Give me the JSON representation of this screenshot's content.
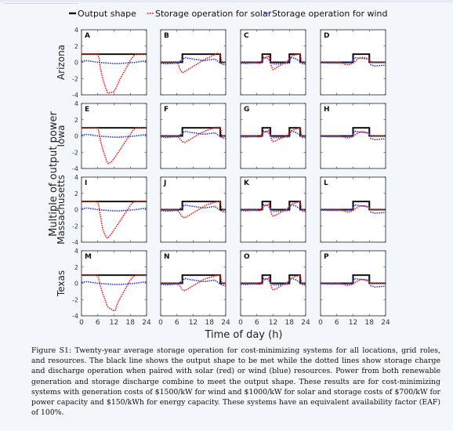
{
  "chart_data": {
    "type": "line",
    "layout": "small-multiples 4x4",
    "legend": {
      "placement": "top",
      "entries": [
        {
          "label": "Output shape",
          "color": "#111111",
          "style": "solid"
        },
        {
          "label": "Storage operation for solar",
          "color": "#e8221c",
          "style": "dotted"
        },
        {
          "label": "Storage operation for wind",
          "color": "#2b3bd6",
          "style": "dotted"
        }
      ]
    },
    "ylabel": "Multiple of output power",
    "xlabel": "Time of day (h)",
    "x_ticks": [
      "0",
      "6",
      "12",
      "18",
      "24"
    ],
    "y_ticks": [
      "4",
      "2",
      "0",
      "-2",
      "-4"
    ],
    "xlim": [
      0,
      24
    ],
    "ylim": [
      -4,
      4
    ],
    "rows": [
      "Arizona",
      "Iowa",
      "Massachusetts",
      "Texas"
    ],
    "panel_letters": [
      "A",
      "B",
      "C",
      "D",
      "E",
      "F",
      "G",
      "H",
      "I",
      "J",
      "K",
      "L",
      "M",
      "N",
      "O",
      "P"
    ],
    "columns": [
      {
        "output_shape": {
          "x": [
            0,
            24
          ],
          "y": [
            1,
            1
          ]
        },
        "wind": {
          "x": [
            0,
            1,
            2,
            3,
            4,
            5,
            6,
            8,
            10,
            12,
            14,
            16,
            18,
            20,
            22,
            23,
            24
          ],
          "y": [
            0.1,
            0.15,
            0.2,
            0.15,
            0.1,
            0.05,
            0,
            -0.05,
            -0.1,
            -0.15,
            -0.15,
            -0.1,
            -0.05,
            0,
            0.1,
            0.15,
            0.15
          ]
        }
      },
      {
        "output_shape": {
          "x": [
            0,
            8,
            8,
            22,
            22,
            24
          ],
          "y": [
            0,
            0,
            1,
            1,
            0,
            0
          ]
        },
        "wind": {
          "x": [
            0,
            2,
            4,
            6,
            8,
            9,
            10,
            12,
            14,
            16,
            18,
            20,
            22,
            23,
            24
          ],
          "y": [
            -0.1,
            -0.2,
            -0.15,
            -0.1,
            0.3,
            0.6,
            0.5,
            0.4,
            0.3,
            0.2,
            0.3,
            0.4,
            -0.1,
            -0.25,
            -0.3
          ]
        }
      },
      {
        "output_shape": {
          "x": [
            0,
            8,
            8,
            11,
            11,
            18,
            18,
            22,
            22,
            24
          ],
          "y": [
            0,
            0,
            1,
            1,
            0,
            0,
            1,
            1,
            0,
            0
          ]
        },
        "wind": {
          "x": [
            0,
            2,
            4,
            6,
            8,
            8.5,
            10,
            11,
            12,
            14,
            16,
            18,
            18.5,
            20,
            22,
            23,
            24
          ],
          "y": [
            -0.1,
            -0.15,
            -0.1,
            -0.1,
            -0.05,
            0.6,
            0.5,
            0.1,
            -0.2,
            -0.2,
            -0.15,
            -0.1,
            0.6,
            0.5,
            0.1,
            -0.2,
            -0.2
          ]
        }
      },
      {
        "output_shape": {
          "x": [
            0,
            12,
            12,
            18,
            18,
            24
          ],
          "y": [
            0,
            0,
            1,
            1,
            0,
            0
          ]
        },
        "wind": {
          "x": [
            0,
            3,
            6,
            9,
            11,
            12,
            12.5,
            14,
            16,
            18,
            18.5,
            20,
            22,
            24
          ],
          "y": [
            -0.05,
            -0.1,
            -0.1,
            -0.1,
            -0.05,
            0.2,
            0.6,
            0.5,
            0.45,
            0.4,
            -0.3,
            -0.45,
            -0.4,
            -0.35
          ]
        }
      }
    ],
    "solar": [
      [
        {
          "x": [
            0,
            5,
            6,
            6.5,
            7,
            8,
            9,
            9.5,
            10,
            11,
            12,
            13,
            14,
            15,
            16,
            17,
            18,
            19,
            20,
            24
          ],
          "y": [
            1,
            1,
            0.95,
            0.5,
            -0.8,
            -2.2,
            -3.2,
            -3.7,
            -3.8,
            -3.7,
            -3.6,
            -3.0,
            -2.2,
            -1.6,
            -1.0,
            -0.4,
            0.2,
            0.7,
            1,
            1
          ]
        },
        {
          "x": [
            0,
            6,
            6.5,
            7,
            8,
            9,
            10,
            11,
            12,
            13,
            14,
            15,
            16,
            17,
            18,
            19,
            20,
            21,
            22,
            22.5,
            23,
            24
          ],
          "y": [
            0,
            0,
            -0.2,
            -0.8,
            -1.3,
            -1.1,
            -0.9,
            -0.7,
            -0.5,
            -0.3,
            -0.1,
            0.1,
            0.3,
            0.5,
            0.6,
            0.8,
            0.95,
            1.1,
            1,
            0.1,
            0,
            0
          ]
        },
        {
          "x": [
            0,
            6,
            7,
            8,
            9,
            10,
            10.5,
            11,
            11.5,
            12,
            13,
            14,
            15,
            16,
            17,
            18,
            19,
            20,
            21,
            22,
            22.5,
            24
          ],
          "y": [
            0,
            0,
            -0.2,
            0.3,
            0.6,
            0.7,
            0.8,
            0,
            -0.6,
            -0.9,
            -0.7,
            -0.5,
            -0.3,
            -0.1,
            0,
            0.5,
            0.8,
            0.9,
            1,
            1,
            0,
            0
          ]
        },
        {
          "x": [
            0,
            7,
            8,
            9,
            10,
            11,
            12,
            13,
            14,
            15,
            16,
            17,
            18,
            18.5,
            19,
            20,
            24
          ],
          "y": [
            0,
            0,
            -0.1,
            -0.25,
            -0.3,
            -0.25,
            -0.1,
            0.2,
            0.5,
            0.6,
            0.6,
            0.5,
            0.3,
            0,
            -0.05,
            0,
            0
          ]
        }
      ],
      [
        {
          "x": [
            0,
            5,
            6,
            6.5,
            7,
            8,
            9,
            9.5,
            10,
            11,
            12,
            13,
            14,
            15,
            16,
            17,
            18,
            19,
            20,
            24
          ],
          "y": [
            1,
            1,
            0.95,
            0.4,
            -0.6,
            -1.8,
            -2.8,
            -3.3,
            -3.4,
            -3.2,
            -2.8,
            -2.3,
            -1.8,
            -1.3,
            -0.8,
            -0.3,
            0.2,
            0.7,
            1,
            1
          ]
        },
        {
          "x": [
            0,
            6,
            7,
            8,
            9,
            10,
            11,
            12,
            13,
            14,
            15,
            16,
            17,
            18,
            19,
            20,
            21,
            22,
            22.5,
            23,
            24
          ],
          "y": [
            0,
            0,
            -0.3,
            -0.7,
            -0.8,
            -0.6,
            -0.4,
            -0.2,
            0,
            0.2,
            0.4,
            0.5,
            0.7,
            0.8,
            0.9,
            1.0,
            1.1,
            1,
            0.1,
            0,
            0
          ]
        },
        {
          "x": [
            0,
            6,
            7,
            8,
            9,
            10,
            10.5,
            11,
            11.5,
            12,
            13,
            14,
            15,
            16,
            17,
            18,
            19,
            20,
            21,
            22,
            22.5,
            24
          ],
          "y": [
            0,
            0,
            -0.2,
            0.3,
            0.5,
            0.6,
            0.7,
            0,
            -0.5,
            -0.7,
            -0.6,
            -0.4,
            -0.3,
            -0.1,
            0,
            0.4,
            0.7,
            0.8,
            0.9,
            1,
            0,
            0
          ]
        },
        {
          "x": [
            0,
            7,
            8,
            9,
            10,
            11,
            12,
            13,
            14,
            15,
            16,
            17,
            18,
            18.5,
            19,
            20,
            24
          ],
          "y": [
            0,
            0,
            -0.1,
            -0.2,
            -0.25,
            -0.2,
            -0.05,
            0.2,
            0.4,
            0.5,
            0.5,
            0.4,
            0.2,
            0,
            -0.05,
            0,
            0
          ]
        }
      ],
      [
        {
          "x": [
            0,
            5,
            6,
            6.5,
            7,
            7.5,
            8,
            9,
            9.5,
            10,
            11,
            12,
            13,
            14,
            15,
            16,
            17,
            18,
            19,
            20,
            24
          ],
          "y": [
            1,
            1,
            0.9,
            0.3,
            -0.8,
            -1.8,
            -2.6,
            -3.3,
            -3.5,
            -3.4,
            -3.0,
            -2.5,
            -2.0,
            -1.5,
            -1.0,
            -0.5,
            0,
            0.5,
            0.9,
            1,
            1
          ]
        },
        {
          "x": [
            0,
            6,
            7,
            8,
            9,
            10,
            11,
            12,
            13,
            14,
            15,
            16,
            17,
            18,
            19,
            20,
            21,
            22,
            22.5,
            23,
            24
          ],
          "y": [
            0,
            0,
            -0.4,
            -0.9,
            -1.0,
            -0.8,
            -0.6,
            -0.4,
            -0.2,
            0,
            0.2,
            0.4,
            0.6,
            0.7,
            0.8,
            0.9,
            1.0,
            1,
            0.1,
            0,
            0
          ]
        },
        {
          "x": [
            0,
            6,
            7,
            8,
            9,
            10,
            10.5,
            11,
            11.5,
            12,
            13,
            14,
            15,
            16,
            17,
            18,
            19,
            20,
            21,
            22,
            22.5,
            24
          ],
          "y": [
            0,
            0,
            -0.2,
            0.3,
            0.5,
            0.6,
            0.7,
            0,
            -0.6,
            -0.8,
            -0.7,
            -0.5,
            -0.3,
            -0.1,
            0,
            0.4,
            0.7,
            0.8,
            0.9,
            1,
            0,
            0
          ]
        },
        {
          "x": [
            0,
            7,
            8,
            9,
            10,
            11,
            12,
            13,
            14,
            15,
            16,
            17,
            18,
            18.5,
            19,
            20,
            24
          ],
          "y": [
            0,
            0,
            -0.1,
            -0.2,
            -0.3,
            -0.25,
            -0.1,
            0.15,
            0.35,
            0.45,
            0.45,
            0.35,
            0.2,
            0,
            -0.05,
            0,
            0
          ]
        }
      ],
      [
        {
          "x": [
            0,
            5,
            6,
            6.5,
            7,
            8,
            9,
            9.5,
            10,
            11,
            12,
            12.5,
            13,
            14,
            15,
            16,
            17,
            18,
            19,
            20,
            24
          ],
          "y": [
            1,
            1,
            0.9,
            0.4,
            -0.4,
            -1.4,
            -2.3,
            -2.8,
            -3.0,
            -3.2,
            -3.4,
            -3.3,
            -2.7,
            -2.0,
            -1.4,
            -0.8,
            -0.2,
            0.4,
            0.8,
            1,
            1
          ]
        },
        {
          "x": [
            0,
            6,
            7,
            8,
            9,
            10,
            11,
            12,
            13,
            14,
            15,
            16,
            17,
            18,
            19,
            20,
            21,
            22,
            22.5,
            23,
            24
          ],
          "y": [
            0,
            0,
            -0.3,
            -0.8,
            -0.9,
            -0.7,
            -0.5,
            -0.3,
            -0.1,
            0.1,
            0.3,
            0.5,
            0.6,
            0.7,
            0.8,
            0.9,
            1.0,
            1,
            0.1,
            0,
            0
          ]
        },
        {
          "x": [
            0,
            6,
            7,
            8,
            9,
            10,
            10.5,
            11,
            11.5,
            12,
            13,
            14,
            15,
            16,
            17,
            18,
            19,
            20,
            21,
            22,
            22.5,
            24
          ],
          "y": [
            0,
            0,
            -0.2,
            0.3,
            0.5,
            0.6,
            0.7,
            0,
            -0.6,
            -0.8,
            -0.7,
            -0.5,
            -0.3,
            -0.1,
            0,
            0.4,
            0.7,
            0.8,
            0.9,
            1,
            0,
            0
          ]
        },
        {
          "x": [
            0,
            7,
            8,
            9,
            10,
            11,
            12,
            13,
            14,
            15,
            16,
            17,
            18,
            18.5,
            19,
            20,
            24
          ],
          "y": [
            0,
            0,
            -0.1,
            -0.2,
            -0.25,
            -0.2,
            -0.1,
            0.15,
            0.35,
            0.45,
            0.45,
            0.35,
            0.2,
            0,
            -0.05,
            0,
            0
          ]
        }
      ]
    ]
  },
  "caption": "Figure S1: Twenty-year average storage operation for cost-minimizing systems for all locations, grid roles, and resources. The black line shows the output shape to be met while the dotted lines show storage charge and discharge operation when paired with solar (red) or wind (blue) resources. Power from both renewable generation and storage discharge combine to meet the output shape. These results are for cost-minimizing systems with generation costs of $1500/kW for wind and $1000/kW for solar and storage costs of $700/kW for power capacity and $150/kWh for energy capacity. These systems have an equivalent availability factor (EAF) of 100%."
}
